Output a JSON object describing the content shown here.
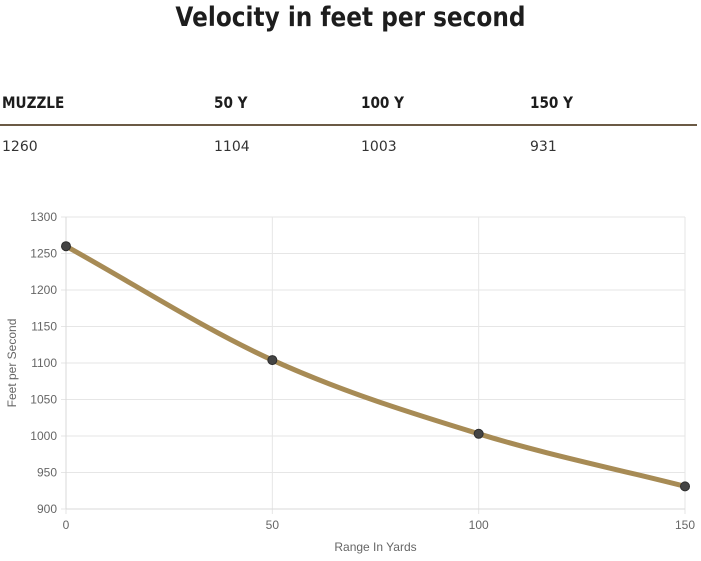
{
  "title": "Velocity in feet per second",
  "table": {
    "headers": [
      "MUZZLE",
      "50 Y",
      "100 Y",
      "150 Y"
    ],
    "values": [
      "1260",
      "1104",
      "1003",
      "931"
    ]
  },
  "chart_data": {
    "type": "line",
    "x": [
      0,
      50,
      100,
      150
    ],
    "series": [
      {
        "values": [
          1260,
          1104,
          1003,
          931
        ]
      }
    ],
    "xlabel": "Range In Yards",
    "ylabel": "Feet per Second",
    "xlim": [
      0,
      150
    ],
    "ylim": [
      900,
      1300
    ],
    "xticks": [
      0,
      50,
      100,
      150
    ],
    "yticks": [
      900,
      950,
      1000,
      1050,
      1100,
      1150,
      1200,
      1250,
      1300
    ],
    "grid": true,
    "legend": "none",
    "colors": {
      "line": "#a78b55",
      "point": "#444444",
      "grid": "#e6e6e6"
    }
  }
}
